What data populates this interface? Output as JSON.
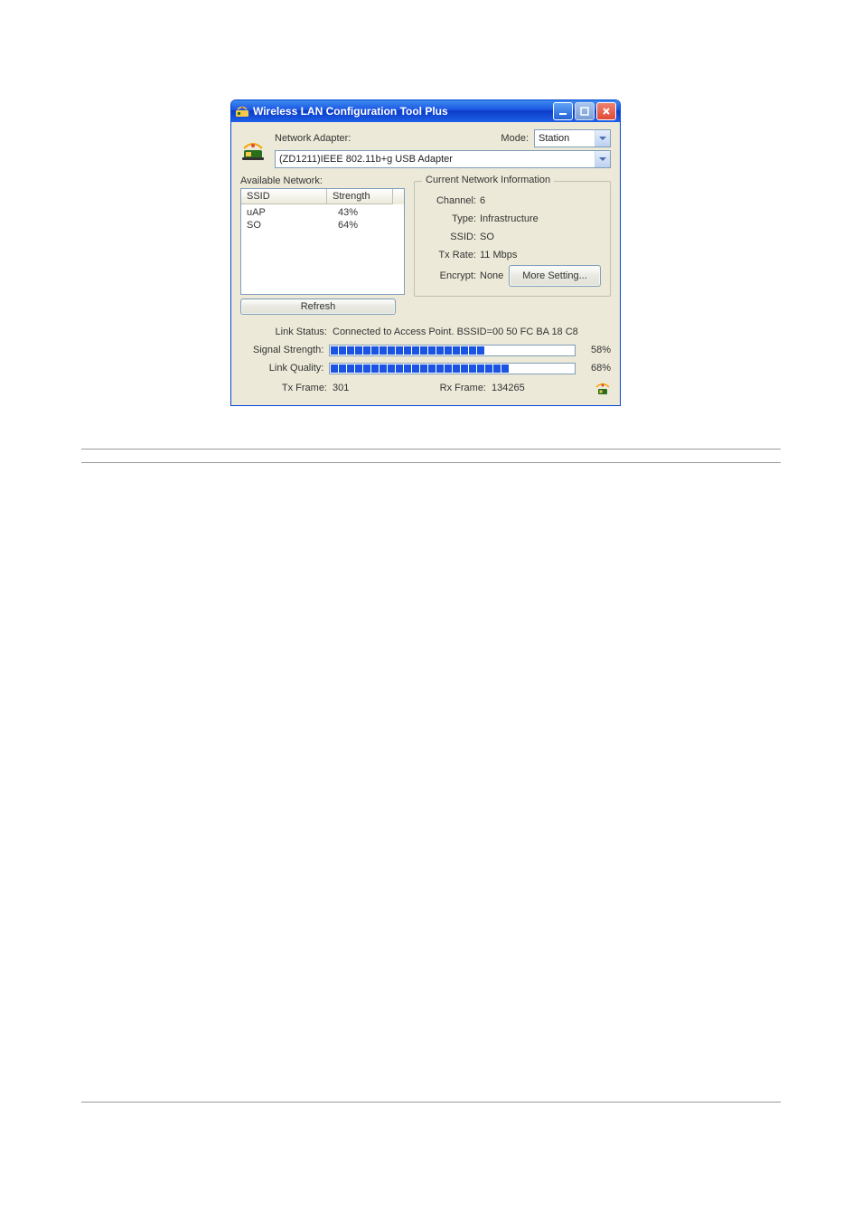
{
  "window": {
    "title": "Wireless LAN Configuration Tool Plus"
  },
  "top": {
    "adapter_label": "Network Adapter:",
    "mode_label": "Mode:",
    "mode_value": "Station",
    "adapter_value": "(ZD1211)IEEE 802.11b+g USB Adapter"
  },
  "available": {
    "label": "Available Network:",
    "columns": {
      "ssid": "SSID",
      "strength": "Strength"
    },
    "rows": [
      {
        "ssid": "uAP",
        "strength": "43%"
      },
      {
        "ssid": "SO",
        "strength": "64%"
      }
    ],
    "refresh": "Refresh"
  },
  "info": {
    "group_title": "Current Network Information",
    "channel_label": "Channel:",
    "channel_value": "6",
    "type_label": "Type:",
    "type_value": "Infrastructure",
    "ssid_label": "SSID:",
    "ssid_value": "SO",
    "txrate_label": "Tx Rate:",
    "txrate_value": "11 Mbps",
    "encrypt_label": "Encrypt:",
    "encrypt_value": "None",
    "more_button": "More Setting..."
  },
  "status": {
    "link_status_label": "Link Status:",
    "link_status_value": "Connected to Access Point. BSSID=00 50 FC BA 18 C8",
    "signal_label": "Signal Strength:",
    "signal_pct": "58%",
    "signal_segments_total": 30,
    "signal_segments_filled": 19,
    "quality_label": "Link Quality:",
    "quality_pct": "68%",
    "quality_segments_total": 30,
    "quality_segments_filled": 22,
    "txframe_label": "Tx Frame:",
    "txframe_value": "301",
    "rxframe_label": "Rx Frame:",
    "rxframe_value": "134265"
  },
  "style": {
    "bar_segment_color": "#1a54e1",
    "panel_bg": "#ece9d8"
  }
}
